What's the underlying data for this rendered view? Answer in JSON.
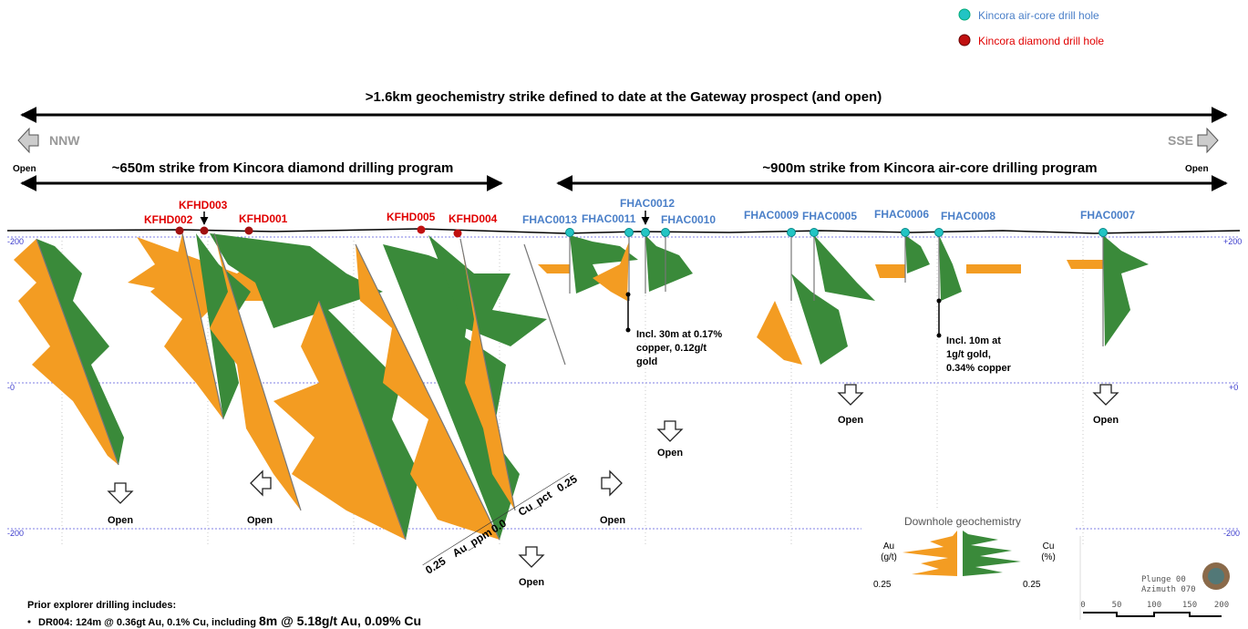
{
  "legend": [
    "Kincora air-core drill hole",
    "Kincora diamond drill hole"
  ],
  "headline": ">1.6km geochemistry strike defined to date at the Gateway prospect (and open)",
  "direction": {
    "left": "NNW",
    "right": "SSE"
  },
  "strikes": [
    "~650m strike from Kincora diamond drilling program",
    "~900m strike from Kincora air-core drilling program"
  ],
  "open_labels": [
    "Open",
    "Open",
    "Open",
    "Open",
    "Open",
    "Open",
    "Open",
    "Open",
    "Open"
  ],
  "diamond_holes": [
    "KFHD002",
    "KFHD003",
    "KFHD001",
    "KFHD005",
    "KFHD004"
  ],
  "aircore_holes": [
    "FHAC0013",
    "FHAC0011",
    "FHAC0012",
    "FHAC0010",
    "FHAC0009",
    "FHAC0005",
    "FHAC0006",
    "FHAC0008",
    "FHAC0007"
  ],
  "annotations": [
    [
      "Incl. 30m at 0.17%",
      "copper, 0.12g/t",
      "gold"
    ],
    [
      "Incl. 10m at",
      "1g/t gold,",
      "0.34% copper"
    ]
  ],
  "depth_labels": {
    "left": [
      "-200",
      "-0",
      "-200"
    ],
    "right": [
      "+200",
      "+0",
      "-200"
    ]
  },
  "section_axis": [
    "0.25",
    "Au_ppm",
    "0.0",
    "Cu_pct",
    "0.25"
  ],
  "geochem_legend": {
    "title": "Downhole geochemistry",
    "left": [
      "Au",
      "(g/t)"
    ],
    "right": [
      "Cu",
      "(%)"
    ],
    "left_scale": "0.25",
    "right_scale": "0.25"
  },
  "scale": {
    "plunge": "Plunge 00",
    "azimuth": "Azimuth 070",
    "ticks": [
      "0",
      "50",
      "100",
      "150",
      "200"
    ]
  },
  "notes": {
    "heading": "Prior explorer drilling includes:",
    "item": "DR004: 124m @ 0.36gt Au, 0.1% Cu, including ",
    "highlight": "8m @ 5.18g/t Au, 0.09% Cu"
  }
}
